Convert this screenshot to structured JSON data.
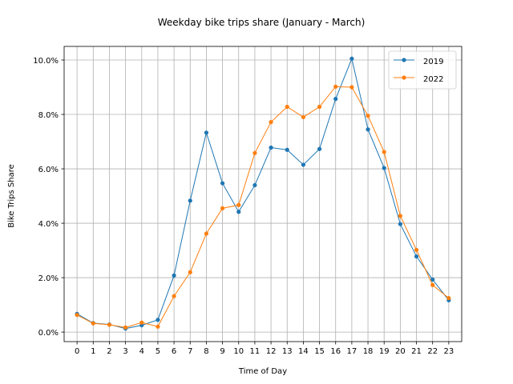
{
  "chart_data": {
    "type": "line",
    "title": "Weekday bike trips share (January - March)",
    "xlabel": "Time of Day",
    "ylabel": "Bike Trips Share",
    "x": [
      0,
      1,
      2,
      3,
      4,
      5,
      6,
      7,
      8,
      9,
      10,
      11,
      12,
      13,
      14,
      15,
      16,
      17,
      18,
      19,
      20,
      21,
      22,
      23
    ],
    "x_tick_labels": [
      "0",
      "1",
      "2",
      "3",
      "4",
      "5",
      "6",
      "7",
      "8",
      "9",
      "10",
      "11",
      "12",
      "13",
      "14",
      "15",
      "16",
      "17",
      "18",
      "19",
      "20",
      "21",
      "22",
      "23"
    ],
    "y_tick_labels": [
      "0.0%",
      "2.0%",
      "4.0%",
      "6.0%",
      "8.0%",
      "10.0%"
    ],
    "y_ticks": [
      0,
      2,
      4,
      6,
      8,
      10
    ],
    "ylim": [
      -0.35,
      10.5
    ],
    "xlim": [
      -0.8,
      23.8
    ],
    "grid": true,
    "legend_position": "top-right",
    "series": [
      {
        "name": "2019",
        "color": "#1f77b4",
        "values": [
          0.67,
          0.33,
          0.28,
          0.13,
          0.25,
          0.45,
          2.08,
          4.83,
          7.33,
          5.47,
          4.42,
          5.4,
          6.78,
          6.7,
          6.15,
          6.73,
          8.57,
          10.05,
          7.45,
          6.03,
          3.97,
          2.78,
          1.93,
          1.17
        ]
      },
      {
        "name": "2022",
        "color": "#ff7f0e",
        "values": [
          0.63,
          0.32,
          0.27,
          0.17,
          0.35,
          0.2,
          1.32,
          2.2,
          3.62,
          4.55,
          4.67,
          6.58,
          7.72,
          8.28,
          7.9,
          8.28,
          9.02,
          9.0,
          7.95,
          6.62,
          4.27,
          3.02,
          1.73,
          1.25
        ]
      }
    ]
  }
}
